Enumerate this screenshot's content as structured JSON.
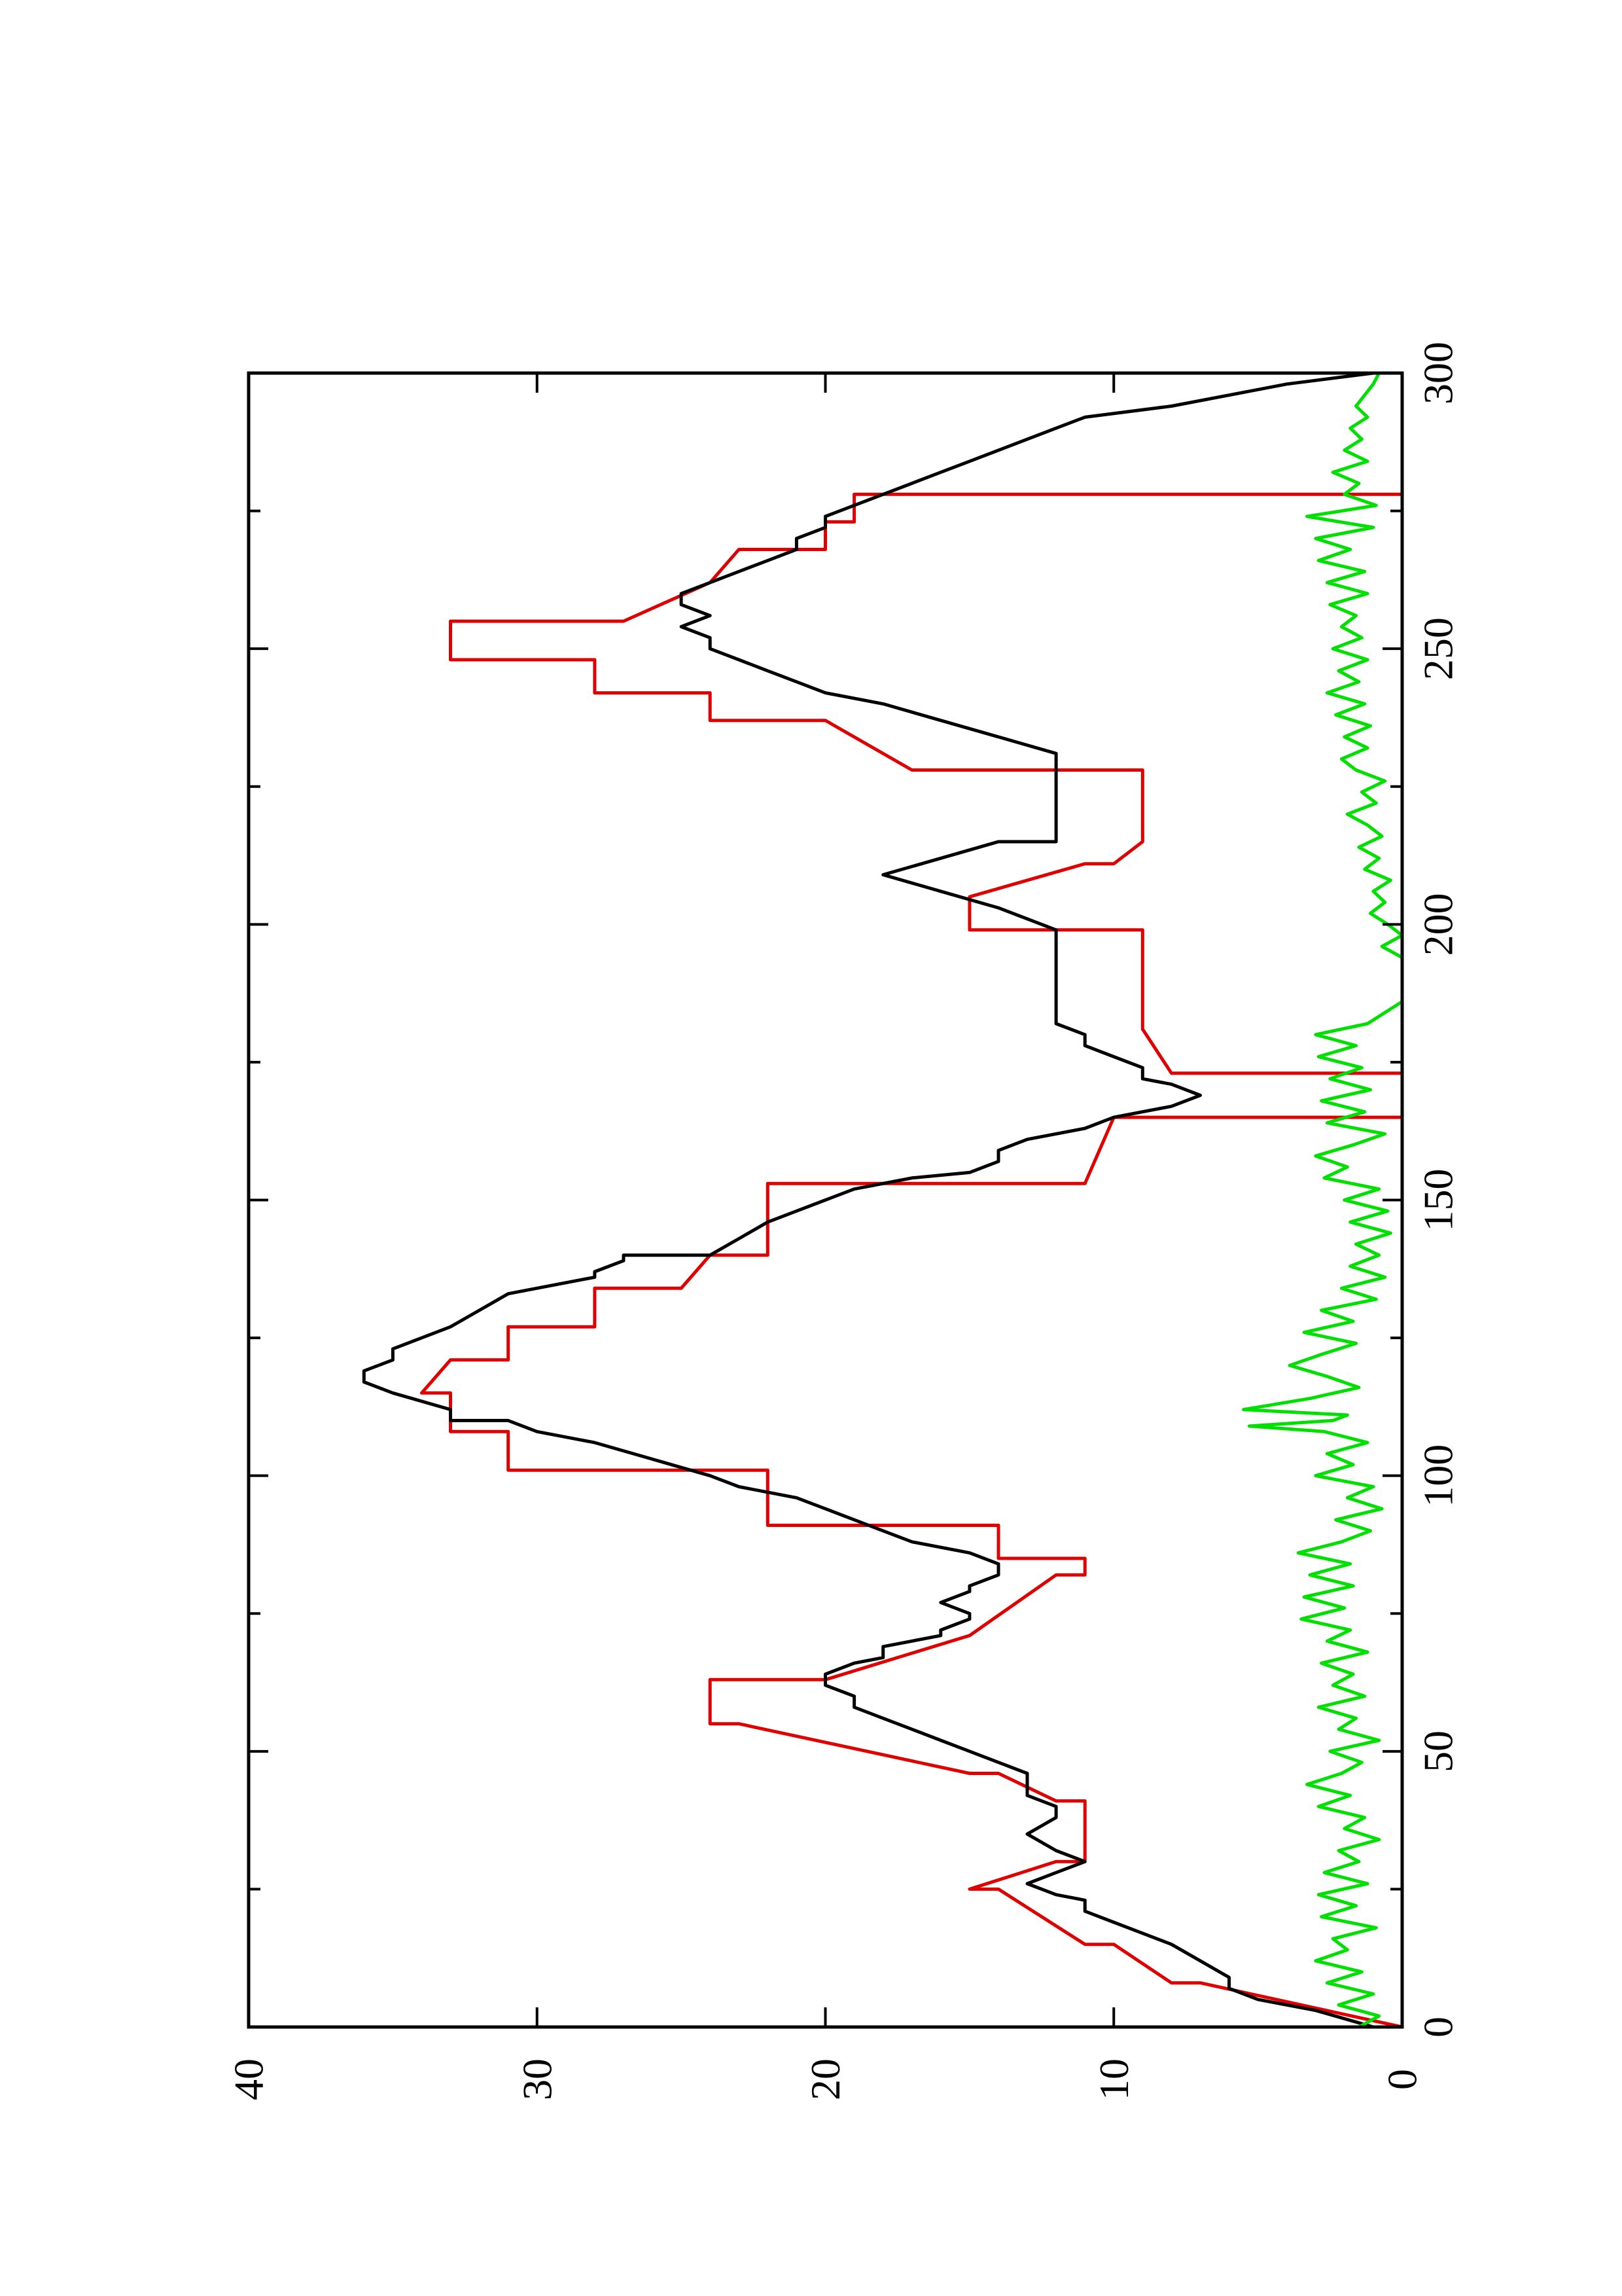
{
  "chart_data": {
    "type": "line",
    "title": "",
    "xlabel": "",
    "ylabel": "",
    "rotation_deg": 90,
    "xlim": [
      0,
      300
    ],
    "ylim": [
      0,
      40
    ],
    "x_ticks": [
      0,
      50,
      100,
      150,
      200,
      250,
      300
    ],
    "x_minor_ticks": [
      25,
      75,
      125,
      175,
      225,
      275
    ],
    "y_ticks": [
      0,
      10,
      20,
      30,
      40
    ],
    "grid": false,
    "legend": "none",
    "series": [
      {
        "color": "#e00000",
        "x": [
          0,
          8,
          8,
          15,
          15,
          25,
          25,
          30,
          30,
          41,
          41,
          46,
          46,
          55,
          55,
          63,
          63,
          71,
          71,
          82,
          82,
          85,
          85,
          91,
          91,
          101,
          101,
          108,
          108,
          115,
          115,
          121,
          121,
          127,
          127,
          134,
          134,
          140,
          140,
          153,
          153,
          165,
          165,
          173,
          173,
          181,
          181,
          199,
          199,
          205,
          205,
          211,
          211,
          215,
          215,
          228,
          228,
          237,
          237,
          242,
          242,
          248,
          248,
          255,
          255,
          262,
          262,
          268,
          268,
          273,
          273,
          278,
          278,
          299,
          299,
          300
        ],
        "values": [
          0,
          7,
          8,
          10,
          11,
          14,
          15,
          12,
          11,
          11,
          12,
          14,
          15,
          23,
          24,
          24,
          20,
          15,
          15,
          12,
          11,
          11,
          14,
          14,
          22,
          22,
          31,
          31,
          33,
          33,
          34,
          33,
          31,
          31,
          28,
          28,
          25,
          24,
          22,
          22,
          11,
          10,
          0,
          0,
          8,
          9,
          9,
          9,
          15,
          15,
          15,
          11,
          10,
          9,
          9,
          9,
          17,
          20,
          24,
          24,
          28,
          28,
          33,
          33,
          27,
          24,
          24,
          23,
          20,
          20,
          19,
          19,
          0,
          0,
          0,
          0
        ]
      },
      {
        "color": "#000000",
        "x": [
          0,
          3,
          5,
          7,
          9,
          12,
          15,
          17,
          19,
          21,
          23,
          24,
          26,
          28,
          30,
          32,
          35,
          38,
          40,
          42,
          44,
          46,
          48,
          50,
          52,
          54,
          56,
          58,
          60,
          62,
          64,
          66,
          67,
          69,
          71,
          72,
          74,
          75,
          77,
          79,
          80,
          82,
          84,
          86,
          88,
          90,
          92,
          94,
          96,
          98,
          100,
          100,
          103,
          106,
          108,
          110,
          110,
          112,
          115,
          117,
          119,
          121,
          123,
          125,
          127,
          127,
          130,
          133,
          135,
          136,
          137,
          139,
          140,
          140,
          143,
          146,
          148,
          150,
          152,
          154,
          155,
          157,
          159,
          161,
          163,
          165,
          167,
          169,
          171,
          172,
          174,
          176,
          178,
          180,
          182,
          184,
          185,
          187,
          190,
          193,
          196,
          199,
          199,
          203,
          206,
          209,
          209,
          212,
          215,
          215,
          218,
          221,
          224,
          228,
          231,
          234,
          237,
          240,
          242,
          244,
          246,
          248,
          250,
          252,
          254,
          256,
          258,
          260,
          262,
          264,
          266,
          268,
          270,
          272,
          274,
          276,
          276,
          278,
          280,
          282,
          284,
          286,
          288,
          290,
          292,
          294,
          296,
          298,
          300
        ],
        "values": [
          1,
          3,
          5,
          6,
          6,
          7,
          8,
          9,
          10,
          11,
          11,
          12,
          13,
          12,
          11,
          12,
          13,
          12,
          12,
          13,
          13,
          13,
          14,
          15,
          16,
          17,
          18,
          19,
          19,
          20,
          20,
          19,
          18,
          18,
          16,
          16,
          15,
          15,
          16,
          15,
          15,
          14,
          14,
          15,
          17,
          18,
          19,
          20,
          21,
          23,
          24,
          24,
          26,
          28,
          30,
          31,
          33,
          33,
          35,
          36,
          36,
          35,
          35,
          34,
          33,
          33,
          32,
          31,
          29,
          28,
          28,
          27,
          27,
          24,
          23,
          22,
          21,
          20,
          19,
          17,
          15,
          14,
          14,
          13,
          11,
          10,
          8,
          7,
          8,
          9,
          9,
          10,
          11,
          11,
          12,
          12,
          12,
          12,
          12,
          12,
          12,
          12,
          12,
          14,
          16,
          18,
          18,
          16,
          14,
          12,
          12,
          12,
          12,
          12,
          12,
          14,
          16,
          18,
          20,
          21,
          22,
          23,
          24,
          24,
          25,
          24,
          25,
          25,
          24,
          23,
          22,
          21,
          21,
          20,
          20,
          19,
          19,
          18,
          17,
          16,
          15,
          14,
          13,
          12,
          11,
          8,
          6,
          4,
          1
        ]
      },
      {
        "color": "#00e000",
        "x": [
          0,
          2,
          4,
          6,
          8,
          10,
          12,
          14,
          16,
          18,
          20,
          22,
          24,
          26,
          28,
          30,
          32,
          34,
          36,
          38,
          40,
          42,
          44,
          46,
          48,
          50,
          52,
          54,
          56,
          58,
          60,
          62,
          64,
          66,
          68,
          70,
          72,
          74,
          76,
          78,
          80,
          82,
          84,
          86,
          88,
          90,
          92,
          94,
          96,
          98,
          100,
          102,
          104,
          106,
          108,
          109,
          110,
          111,
          112,
          114,
          116,
          118,
          120,
          122,
          124,
          126,
          128,
          130,
          132,
          134,
          136,
          138,
          140,
          142,
          144,
          146,
          148,
          150,
          152,
          154,
          156,
          158,
          160,
          162,
          164,
          166,
          168,
          170,
          172,
          174,
          176,
          178,
          180,
          182,
          184,
          186,
          188,
          190,
          192,
          194,
          196,
          198,
          200,
          202,
          204,
          206,
          208,
          210,
          212,
          214,
          216,
          218,
          220,
          222,
          224,
          226,
          228,
          230,
          232,
          234,
          236,
          238,
          240,
          242,
          244,
          246,
          248,
          250,
          252,
          254,
          256,
          258,
          260,
          262,
          264,
          266,
          268,
          270,
          272,
          274,
          276,
          278,
          280,
          282,
          284,
          286,
          288,
          290,
          292,
          294,
          296,
          298,
          300
        ],
        "values": [
          1.5,
          0.8,
          2.2,
          1.0,
          2.6,
          1.4,
          3.0,
          1.9,
          2.4,
          0.9,
          2.8,
          1.6,
          2.9,
          1.2,
          2.7,
          1.5,
          2.2,
          0.8,
          2.0,
          1.3,
          2.9,
          1.8,
          3.3,
          2.1,
          1.4,
          2.5,
          0.8,
          2.2,
          1.6,
          2.9,
          1.3,
          2.4,
          1.7,
          2.8,
          1.2,
          2.6,
          1.8,
          3.5,
          2.0,
          3.4,
          1.7,
          3.2,
          1.8,
          3.6,
          2.1,
          1.1,
          2.3,
          0.7,
          1.9,
          1.0,
          3.0,
          1.7,
          2.6,
          1.2,
          2.7,
          5.3,
          2.4,
          1.9,
          5.5,
          3.2,
          1.5,
          2.6,
          3.9,
          2.8,
          1.6,
          3.4,
          1.7,
          2.8,
          0.9,
          2.1,
          0.6,
          1.8,
          0.8,
          1.6,
          0.4,
          1.8,
          0.5,
          2.0,
          0.8,
          2.7,
          1.9,
          3.0,
          1.7,
          0.6,
          2.6,
          1.3,
          2.8,
          1.1,
          2.5,
          1.4,
          2.9,
          1.6,
          3.0,
          1.2,
          0.6,
          0,
          0,
          0,
          0,
          0,
          0.7,
          0,
          0.5,
          1.1,
          0.6,
          1.0,
          0.4,
          1.3,
          0.8,
          1.5,
          0.7,
          1.2,
          1.9,
          0.9,
          1.4,
          0.6,
          1.6,
          2.1,
          1.2,
          2.0,
          1.1,
          2.3,
          1.3,
          2.6,
          1.5,
          2.2,
          1.2,
          2.4,
          1.4,
          2.1,
          1.6,
          2.5,
          1.2,
          2.6,
          1.3,
          2.9,
          1.8,
          3.0,
          1.0,
          3.3,
          0.9,
          2.0,
          1.5,
          2.4,
          1.2,
          2.0,
          1.4,
          1.8,
          1.2,
          1.6,
          1.3,
          1.0,
          0.8
        ]
      }
    ]
  }
}
